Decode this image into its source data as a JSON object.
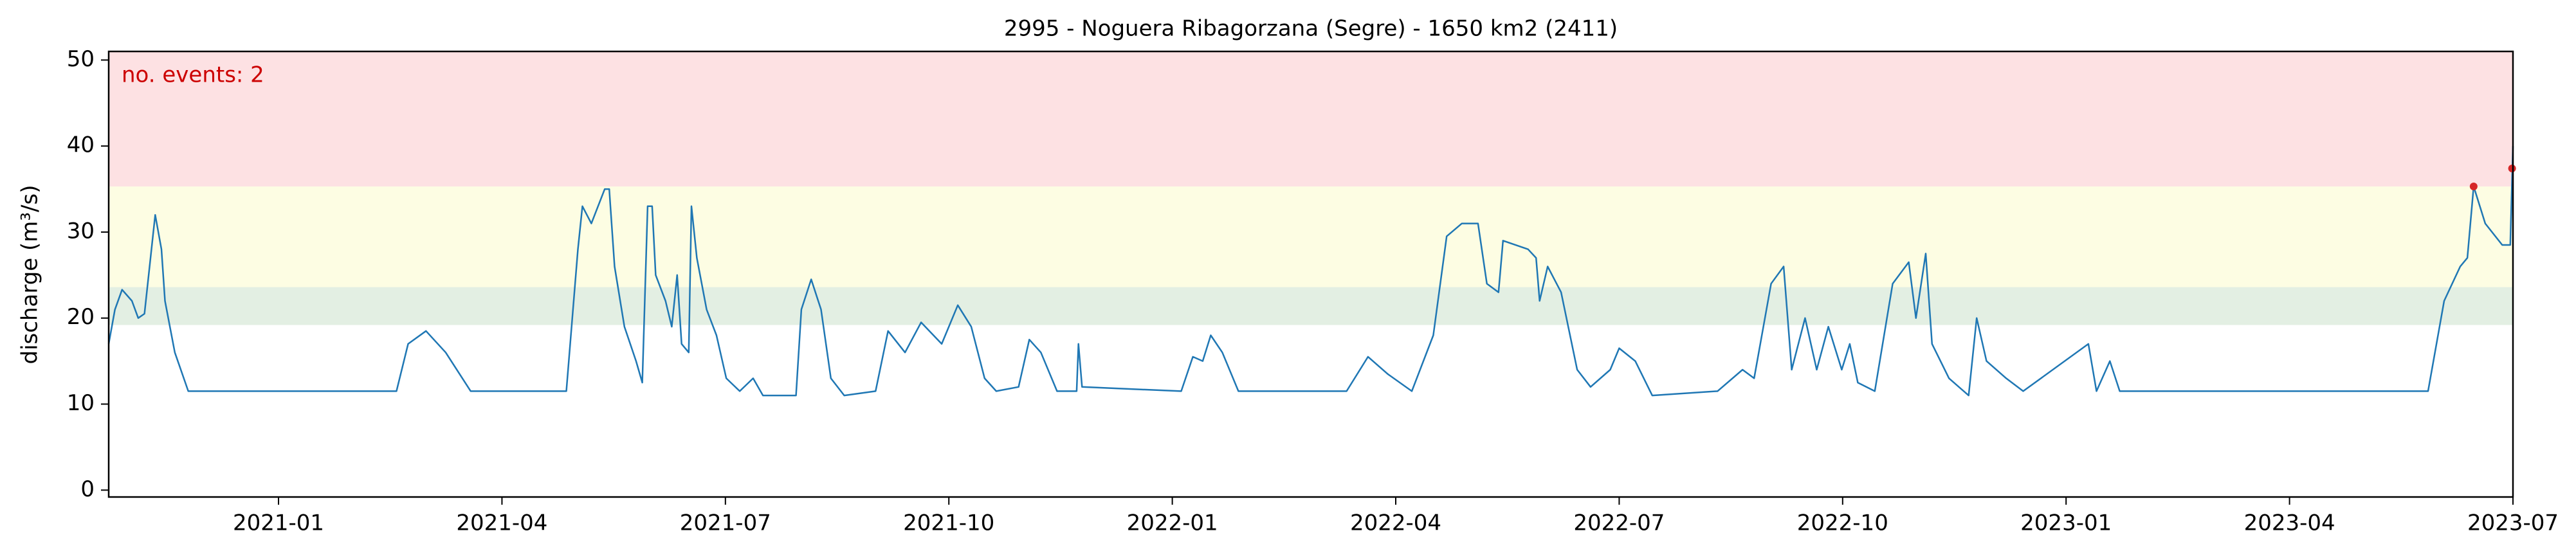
{
  "chart_data": {
    "type": "line",
    "title": "2995 - Noguera Ribagorzana (Segre) - 1650 km2 (2411)",
    "y_label": "discharge (m³/s)",
    "annotation": "no. events: 2",
    "annotation_color": "#cc0000",
    "bands": [
      {
        "from": 19.2,
        "to": 23.6,
        "color": "#e3efe3"
      },
      {
        "from": 23.6,
        "to": 35.3,
        "color": "#fdfde3"
      },
      {
        "from": 35.3,
        "to": 51,
        "color": "#fde1e3"
      }
    ],
    "xlim": [
      2020.81,
      2023.5
    ],
    "ylim": [
      -0.8,
      51
    ],
    "xticks": [
      {
        "value": 2021.0,
        "label": "2021-01"
      },
      {
        "value": 2021.25,
        "label": "2021-04"
      },
      {
        "value": 2021.5,
        "label": "2021-07"
      },
      {
        "value": 2021.75,
        "label": "2021-10"
      },
      {
        "value": 2022.0,
        "label": "2022-01"
      },
      {
        "value": 2022.25,
        "label": "2022-04"
      },
      {
        "value": 2022.5,
        "label": "2022-07"
      },
      {
        "value": 2022.75,
        "label": "2022-10"
      },
      {
        "value": 2023.0,
        "label": "2023-01"
      },
      {
        "value": 2023.25,
        "label": "2023-04"
      },
      {
        "value": 2023.5,
        "label": "2023-07"
      }
    ],
    "yticks": [
      0,
      10,
      20,
      30,
      40,
      50
    ],
    "series": [
      {
        "color": "#1f77b4",
        "x": [
          2020.81,
          2020.817,
          2020.825,
          2020.836,
          2020.843,
          2020.85,
          2020.862,
          2020.869,
          2020.873,
          2020.884,
          2020.899,
          2021.132,
          2021.145,
          2021.165,
          2021.187,
          2021.215,
          2021.322,
          2021.335,
          2021.34,
          2021.35,
          2021.365,
          2021.37,
          2021.376,
          2021.387,
          2021.4,
          2021.407,
          2021.413,
          2021.418,
          2021.422,
          2021.433,
          2021.44,
          2021.446,
          2021.451,
          2021.459,
          2021.462,
          2021.468,
          2021.479,
          2021.49,
          2021.501,
          2021.516,
          2021.531,
          2021.542,
          2021.579,
          2021.585,
          2021.596,
          2021.607,
          2021.618,
          2021.633,
          2021.668,
          2021.682,
          2021.701,
          2021.719,
          2021.742,
          2021.76,
          2021.775,
          2021.79,
          2021.803,
          2021.828,
          2021.84,
          2021.853,
          2021.871,
          2021.893,
          2021.895,
          2021.899,
          2022.01,
          2022.023,
          2022.034,
          2022.043,
          2022.056,
          2022.074,
          2022.195,
          2022.219,
          2022.241,
          2022.268,
          2022.292,
          2022.307,
          2022.324,
          2022.342,
          2022.352,
          2022.365,
          2022.37,
          2022.398,
          2022.407,
          2022.411,
          2022.42,
          2022.435,
          2022.453,
          2022.468,
          2022.49,
          2022.5,
          2022.518,
          2022.537,
          2022.61,
          2022.638,
          2022.651,
          2022.67,
          2022.684,
          2022.693,
          2022.708,
          2022.721,
          2022.734,
          2022.749,
          2022.758,
          2022.767,
          2022.786,
          2022.806,
          2022.824,
          2022.832,
          2022.843,
          2022.85,
          2022.869,
          2022.891,
          2022.9,
          2022.911,
          2022.933,
          2022.952,
          2023.025,
          2023.034,
          2023.049,
          2023.06,
          2023.405,
          2023.423,
          2023.441,
          2023.449,
          2023.456,
          2023.469,
          2023.488,
          2023.497,
          2023.5
        ],
        "values": [
          17,
          21,
          23.3,
          22,
          20,
          20.5,
          32,
          28,
          22,
          16,
          11.5,
          11.5,
          17,
          18.5,
          16,
          11.5,
          11.5,
          28,
          33,
          31,
          35,
          35,
          26,
          19,
          15,
          12.5,
          33,
          33,
          25,
          22,
          19,
          25,
          17,
          16,
          33,
          27,
          21,
          18,
          13,
          11.5,
          13,
          11,
          11,
          21,
          24.5,
          21,
          13,
          11,
          11.5,
          18.5,
          16,
          19.5,
          17,
          21.5,
          19,
          13,
          11.5,
          12,
          17.5,
          16,
          11.5,
          11.5,
          17,
          12,
          11.5,
          15.5,
          15,
          18,
          16,
          11.5,
          11.5,
          15.5,
          13.5,
          11.5,
          18,
          29.5,
          31,
          31,
          24,
          23,
          29,
          28,
          27,
          22,
          26,
          23,
          14,
          12,
          14,
          16.5,
          15,
          11,
          11.5,
          14,
          13,
          24,
          26,
          14,
          20,
          14,
          19,
          14,
          17,
          12.5,
          11.5,
          24,
          26.5,
          20,
          27.5,
          17,
          13,
          11,
          20,
          15,
          13,
          11.5,
          17,
          11.5,
          15,
          11.5,
          11.5,
          22,
          26,
          27,
          35.3,
          31,
          28.5,
          28.5,
          40
        ]
      }
    ],
    "events": {
      "color": "#d62728",
      "x": [
        2023.456,
        2023.499
      ],
      "values": [
        35.3,
        37.4
      ]
    }
  }
}
